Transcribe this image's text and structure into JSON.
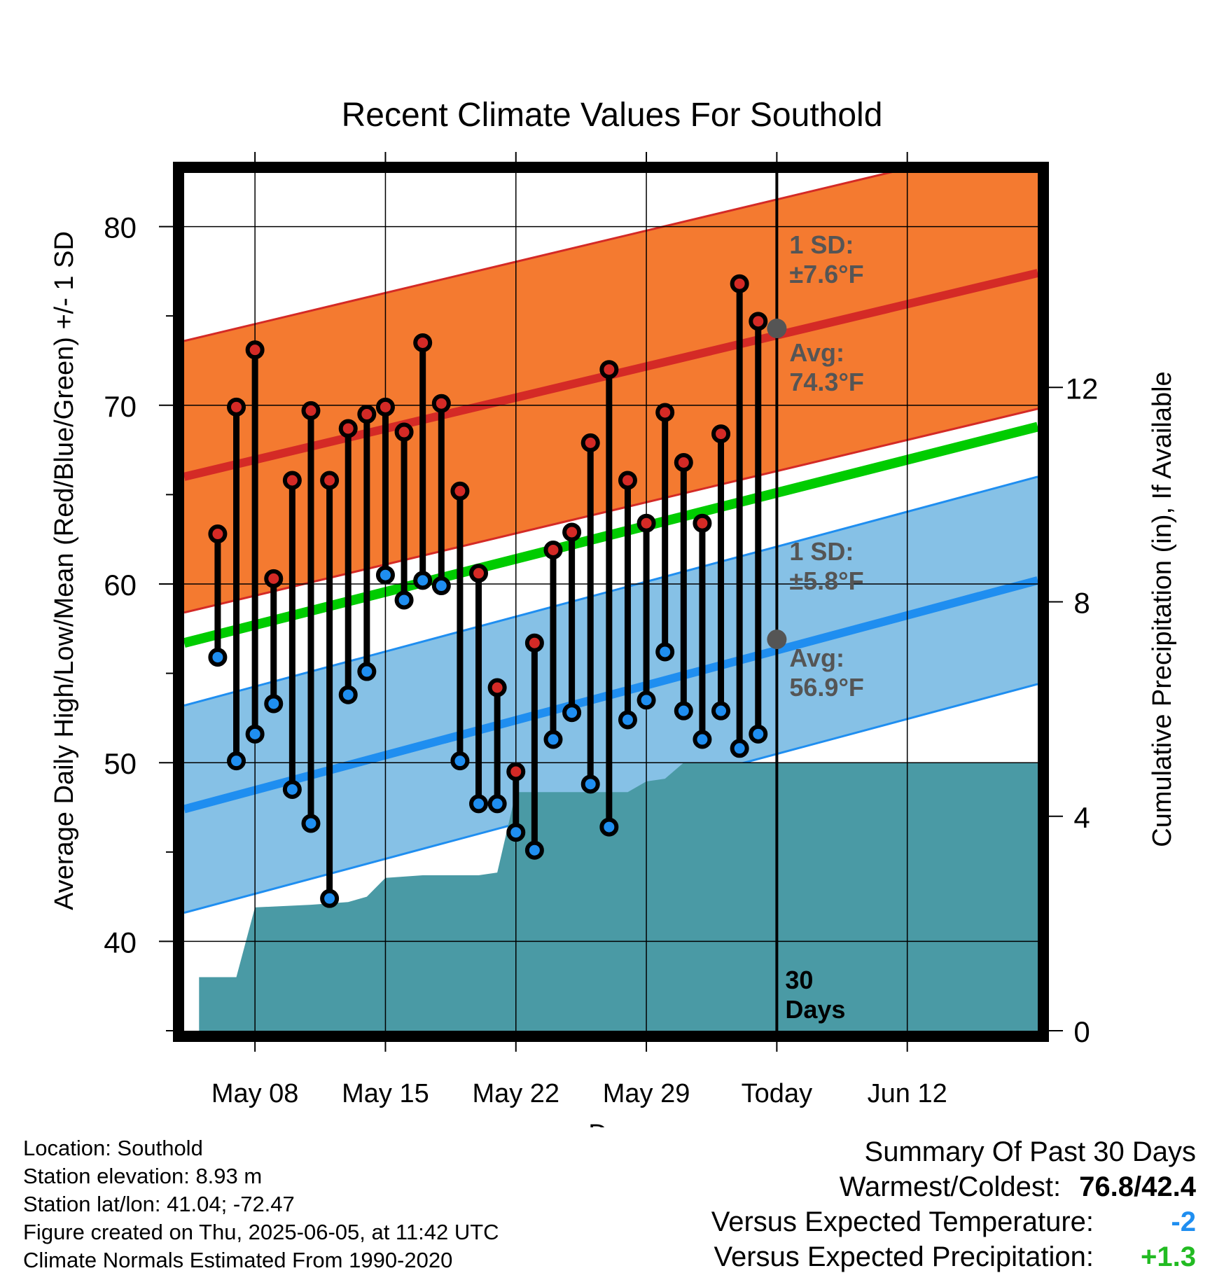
{
  "chart_data": {
    "type": "line",
    "title": "Recent Climate Values For Southold",
    "xlabel": "Day",
    "ylabel": "Average Daily High/Low/Mean (Red/Blue/Green) +/- 1 SD",
    "y2label": "Cumulative Precipitation (in), If Available",
    "ylim": [
      35,
      83
    ],
    "y2lim": [
      0,
      16
    ],
    "xlim": [
      -0.8,
      45
    ],
    "yticks": [
      40,
      50,
      60,
      70,
      80
    ],
    "y2ticks": [
      0,
      4,
      8,
      12
    ],
    "xticks": [
      {
        "x": 3,
        "label": "May 08"
      },
      {
        "x": 10,
        "label": "May 15"
      },
      {
        "x": 17,
        "label": "May 22"
      },
      {
        "x": 24,
        "label": "May 29"
      },
      {
        "x": 31,
        "label": "Today"
      },
      {
        "x": 38,
        "label": "Jun 12"
      }
    ],
    "today_x": 31,
    "today_label": "30\nDays",
    "grid": true,
    "days": [
      1,
      2,
      3,
      4,
      5,
      6,
      7,
      8,
      9,
      10,
      11,
      12,
      13,
      14,
      15,
      16,
      17,
      18,
      19,
      20,
      21,
      22,
      23,
      24,
      25,
      26,
      27,
      28,
      29,
      30
    ],
    "highs": [
      62.8,
      69.9,
      73.1,
      60.3,
      65.8,
      69.7,
      65.8,
      68.7,
      69.5,
      69.9,
      68.5,
      73.5,
      70.1,
      65.2,
      60.6,
      54.2,
      49.5,
      56.7,
      61.9,
      62.9,
      67.9,
      72.0,
      65.8,
      63.4,
      69.6,
      66.8,
      63.4,
      68.4,
      76.8,
      74.7
    ],
    "lows": [
      55.9,
      50.1,
      51.6,
      53.3,
      48.5,
      46.6,
      42.4,
      53.8,
      55.1,
      60.5,
      59.1,
      60.2,
      59.9,
      50.1,
      47.7,
      47.7,
      46.1,
      45.1,
      51.3,
      52.8,
      48.8,
      46.4,
      52.4,
      53.5,
      56.2,
      52.9,
      51.3,
      52.9,
      50.8,
      51.6
    ],
    "normal_high": {
      "start": 66.0,
      "end": 77.4
    },
    "normal_low": {
      "start": 47.4,
      "end": 60.2
    },
    "normal_mean": {
      "start": 56.7,
      "end": 68.8
    },
    "sd_high": 7.6,
    "sd_low": 5.8,
    "precip_cumulative": [
      {
        "x": 0,
        "y": 1.0
      },
      {
        "x": 2,
        "y": 1.0
      },
      {
        "x": 3,
        "y": 2.3
      },
      {
        "x": 6,
        "y": 2.35
      },
      {
        "x": 8,
        "y": 2.4
      },
      {
        "x": 9,
        "y": 2.5
      },
      {
        "x": 10,
        "y": 2.85
      },
      {
        "x": 12,
        "y": 2.9
      },
      {
        "x": 15,
        "y": 2.9
      },
      {
        "x": 16,
        "y": 2.95
      },
      {
        "x": 17,
        "y": 4.45
      },
      {
        "x": 23,
        "y": 4.45
      },
      {
        "x": 24,
        "y": 4.65
      },
      {
        "x": 25,
        "y": 4.7
      },
      {
        "x": 26,
        "y": 5.0
      },
      {
        "x": 31,
        "y": 5.0
      }
    ],
    "annotations": {
      "high_sd": "1 SD:\n±7.6°F",
      "high_avg": "Avg:\n74.3°F",
      "low_sd": "1 SD:\n±5.8°F",
      "low_avg": "Avg:\n56.9°F",
      "today_high_avg": 74.3,
      "today_low_avg": 56.9
    }
  },
  "info": {
    "location": "Location: Southold",
    "elevation": "Station elevation: 8.93 m",
    "latlon": "Station lat/lon: 41.04; -72.47",
    "created": "Figure created on Thu, 2025-06-05, at 11:42 UTC",
    "normals": "Climate Normals Estimated From 1990-2020"
  },
  "summary": {
    "title": "Summary Of Past 30 Days",
    "warmest_label": "Warmest/Coldest:",
    "warmest": "76.8",
    "coldest": "42.4",
    "temp_label": "Versus Expected Temperature:",
    "temp_value": "-2",
    "precip_label": "Versus Expected Precipitation:",
    "precip_value": "+1.3"
  },
  "colors": {
    "high_band": "#f47a30",
    "high_line": "#d42a26",
    "low_band": "#86c1e6",
    "low_line": "#1f8ef0",
    "mean_line": "#00cc00",
    "precip": "#4a9aa5",
    "grey_text": "#555555",
    "temp_value": "#1f8ef0",
    "precip_value": "#22bb22"
  }
}
